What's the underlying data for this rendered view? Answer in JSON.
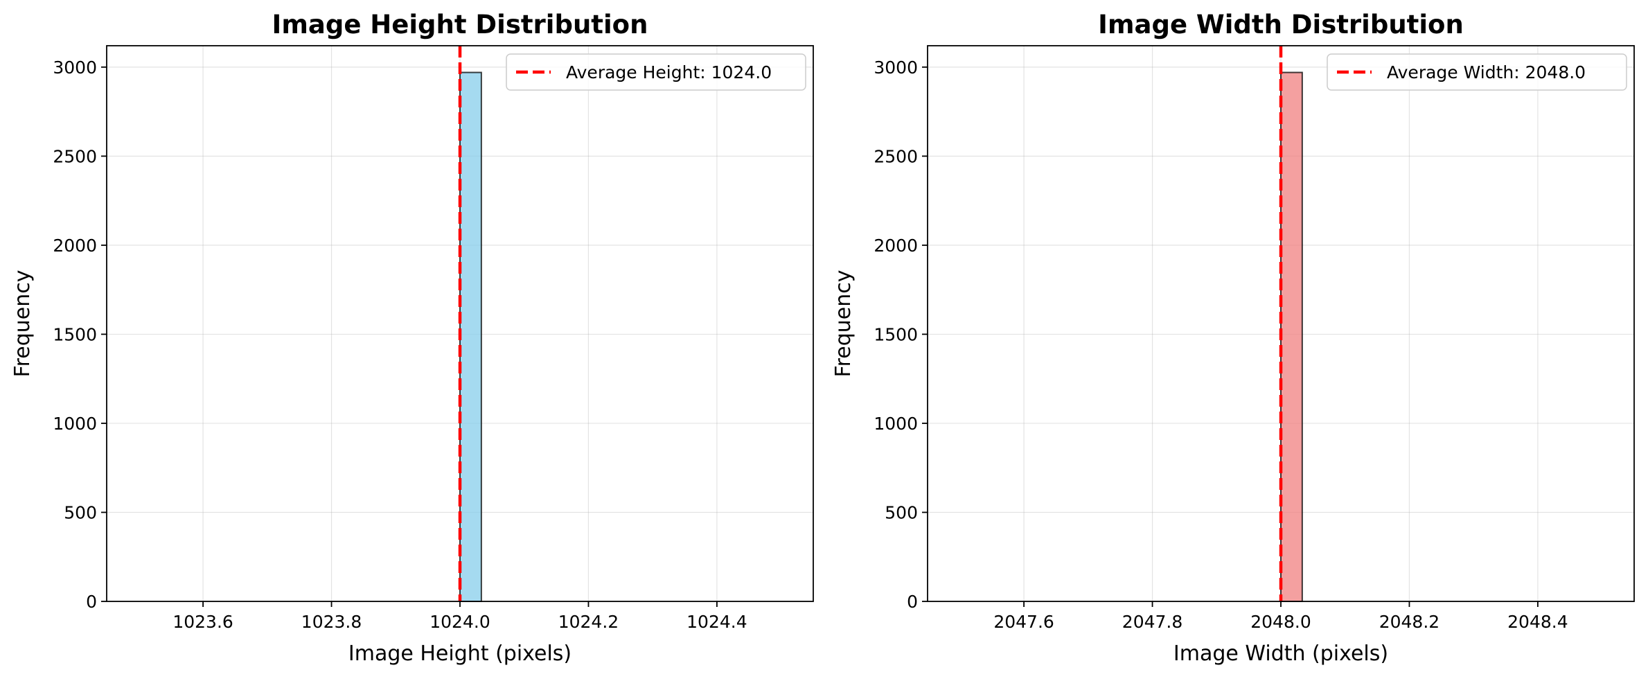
{
  "chart_data": [
    {
      "type": "bar",
      "title": "Image Height Distribution",
      "xlabel": "Image Height (pixels)",
      "ylabel": "Frequency",
      "xlim": [
        1023.45,
        1024.55
      ],
      "ylim": [
        0,
        3120
      ],
      "xticks": [
        1023.6,
        1023.8,
        1024.0,
        1024.2,
        1024.4
      ],
      "xtick_labels": [
        "1023.6",
        "1023.8",
        "1024.0",
        "1024.2",
        "1024.4"
      ],
      "yticks": [
        0,
        500,
        1000,
        1500,
        2000,
        2500,
        3000
      ],
      "ytick_labels": [
        "0",
        "500",
        "1000",
        "1500",
        "2000",
        "2500",
        "3000"
      ],
      "bins": [
        {
          "x0": 1024.0,
          "x1": 1024.0333,
          "count": 2970
        }
      ],
      "bar_color": "#87ceeb",
      "mean_line": {
        "value": 1024.0,
        "label": "Average Height: 1024.0",
        "color": "#ff0000"
      },
      "grid": true,
      "legend_position": "top-right"
    },
    {
      "type": "bar",
      "title": "Image Width Distribution",
      "xlabel": "Image Width (pixels)",
      "ylabel": "Frequency",
      "xlim": [
        2047.45,
        2048.55
      ],
      "ylim": [
        0,
        3120
      ],
      "xticks": [
        2047.6,
        2047.8,
        2048.0,
        2048.2,
        2048.4
      ],
      "xtick_labels": [
        "2047.6",
        "2047.8",
        "2048.0",
        "2048.2",
        "2048.4"
      ],
      "yticks": [
        0,
        500,
        1000,
        1500,
        2000,
        2500,
        3000
      ],
      "ytick_labels": [
        "0",
        "500",
        "1000",
        "1500",
        "2000",
        "2500",
        "3000"
      ],
      "bins": [
        {
          "x0": 2048.0,
          "x1": 2048.0333,
          "count": 2970
        }
      ],
      "bar_color": "#f08080",
      "mean_line": {
        "value": 2048.0,
        "label": "Average Width: 2048.0",
        "color": "#ff0000"
      },
      "grid": true,
      "legend_position": "top-right"
    }
  ]
}
